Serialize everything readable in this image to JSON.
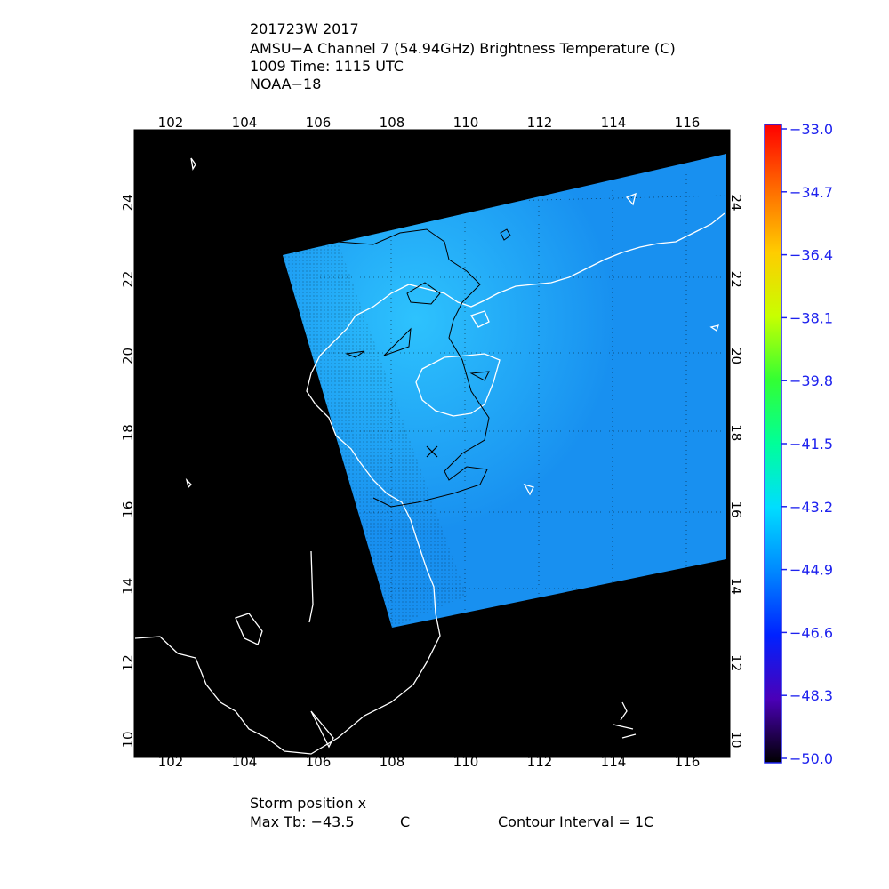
{
  "header": {
    "line1": "201723W 2017",
    "line2": "AMSU−A Channel 7 (54.94GHz) Brightness Temperature (C)",
    "line3": "1009 Time: 1115 UTC",
    "line4": "NOAA−18"
  },
  "axes": {
    "lon_ticks": [
      "102",
      "104",
      "106",
      "108",
      "110",
      "112",
      "114",
      "116"
    ],
    "lat_ticks": [
      "10",
      "12",
      "14",
      "16",
      "18",
      "20",
      "22",
      "24"
    ]
  },
  "colorbar": {
    "labels": [
      "−33.0",
      "−34.7",
      "−36.4",
      "−38.1",
      "−39.8",
      "−41.5",
      "−43.2",
      "−44.9",
      "−46.6",
      "−48.3",
      "−50.0"
    ],
    "colors": [
      "#ff0000",
      "#ff7f00",
      "#ffd800",
      "#b8ff00",
      "#33ff33",
      "#00ff99",
      "#00ddff",
      "#0088ff",
      "#0022ff",
      "#5500cc",
      "#000000"
    ],
    "label_color": "#1e22ee"
  },
  "swath": {
    "fill_color": "#1890f0",
    "bright_color": "#28c0ff"
  },
  "footer": {
    "storm": "Storm position x",
    "max_tb": "Max Tb: −43.5",
    "max_tb_unit": "C",
    "contour": "Contour Interval = 1C"
  }
}
